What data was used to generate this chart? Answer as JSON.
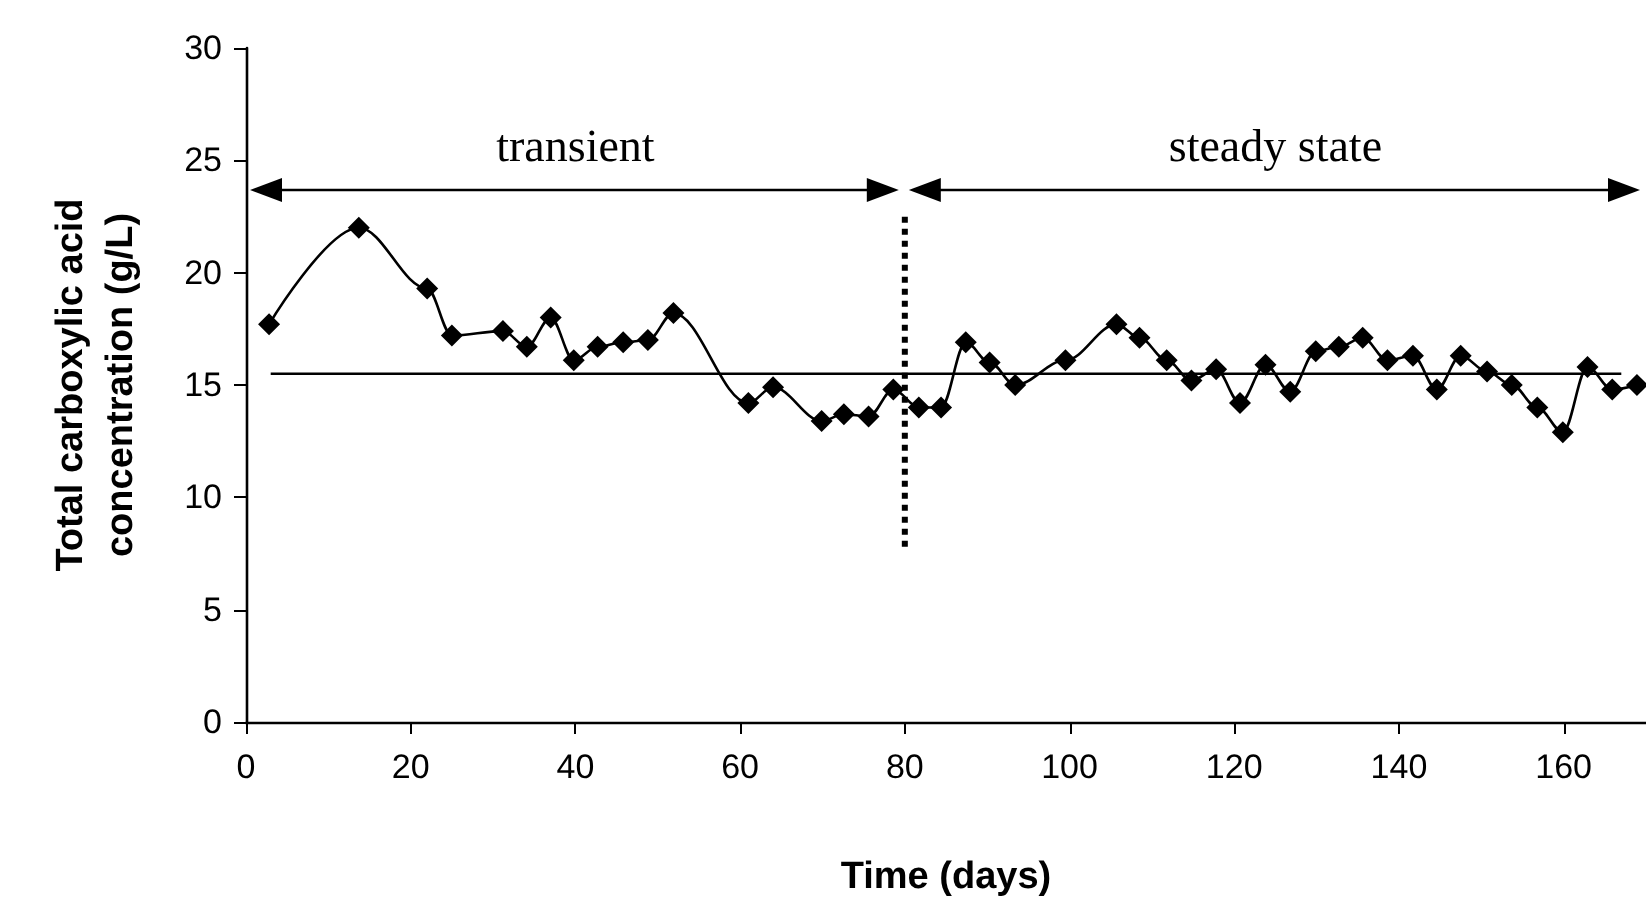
{
  "chart_data": {
    "type": "line",
    "xlabel": "Time (days)",
    "ylabel": "Total carboxylic acid concentration (g/L)",
    "xlim": [
      0,
      170
    ],
    "xticks": [
      0,
      20,
      40,
      60,
      80,
      100,
      120,
      140,
      160
    ],
    "ylim": [
      0,
      30
    ],
    "yticks": [
      0,
      5,
      10,
      15,
      20,
      25,
      30
    ],
    "series": [
      {
        "color": "#000000",
        "marker": "diamond",
        "line_style": "solid",
        "x": [
          2.8,
          13.7,
          22.0,
          25.0,
          31.2,
          34.1,
          37.0,
          39.8,
          42.7,
          45.8,
          48.8,
          51.9,
          61.0,
          64.0,
          69.9,
          72.6,
          75.6,
          78.6,
          81.7,
          84.4,
          87.4,
          90.3,
          93.4,
          99.5,
          105.7,
          108.5,
          111.8,
          114.8,
          117.8,
          120.7,
          123.8,
          126.8,
          129.9,
          132.7,
          135.6,
          138.6,
          141.7,
          144.6,
          147.5,
          150.7,
          153.7,
          156.8,
          159.9,
          162.9,
          165.9,
          168.9
        ],
        "values": [
          17.7,
          22.0,
          19.3,
          17.2,
          17.4,
          16.7,
          18.0,
          16.1,
          16.7,
          16.9,
          17.0,
          18.2,
          14.2,
          14.9,
          13.4,
          13.7,
          13.6,
          14.8,
          14.0,
          14.0,
          16.9,
          16.0,
          15.0,
          16.1,
          17.7,
          17.1,
          16.1,
          15.2,
          15.7,
          14.2,
          15.9,
          14.7,
          16.5,
          16.7,
          17.1,
          16.1,
          16.3,
          14.8,
          16.3,
          15.6,
          15.0,
          14.0,
          12.9,
          15.8,
          14.8,
          15.0
        ]
      },
      {
        "color": "#000000",
        "marker": "none",
        "line_style": "solid",
        "x": [
          3,
          167
        ],
        "values": [
          15.5,
          15.5
        ]
      },
      {
        "color": "#000000",
        "marker": "none",
        "line_style": "dotted",
        "x": [
          80,
          80
        ],
        "values": [
          7.8,
          22.6
        ]
      }
    ],
    "annotations": [
      "transient",
      "steady state"
    ]
  }
}
